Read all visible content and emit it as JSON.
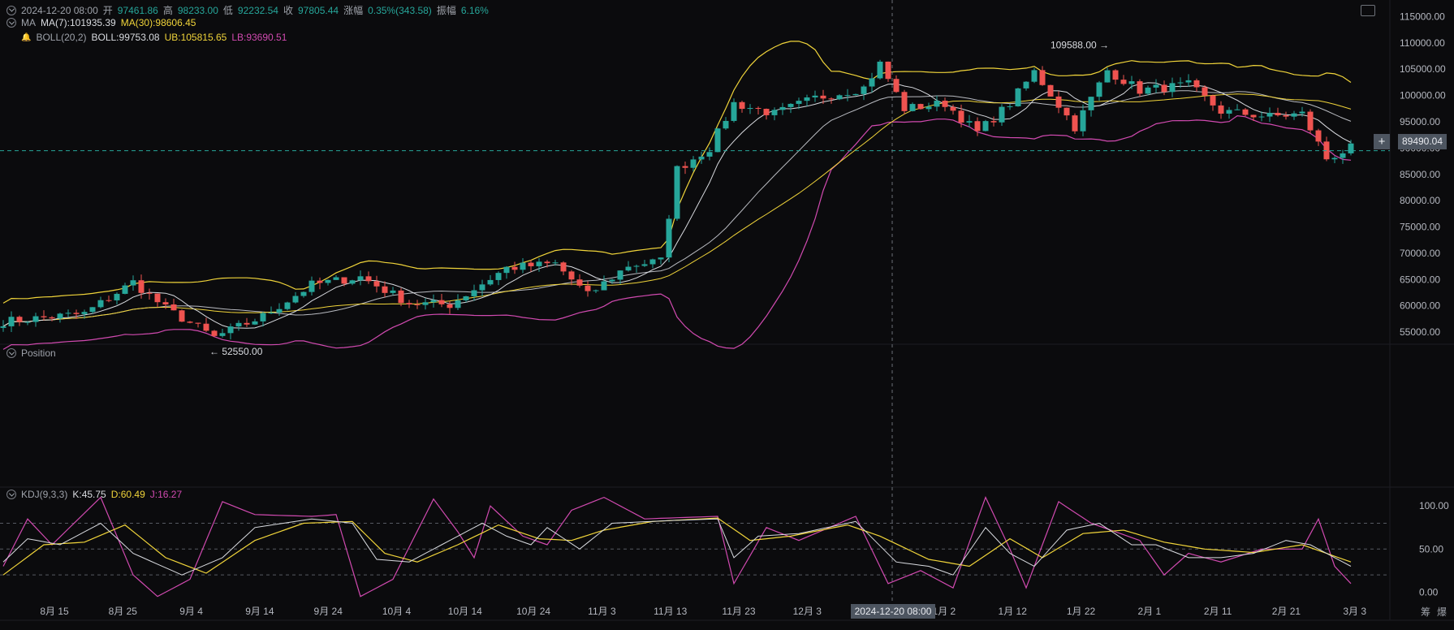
{
  "header": {
    "date": "2024-12-20 08:00",
    "open_label": "开",
    "open": "97461.86",
    "high_label": "高",
    "high": "98233.00",
    "low_label": "低",
    "low": "92232.54",
    "close_label": "收",
    "close": "97805.44",
    "change_label": "涨幅",
    "change": "0.35%(343.58)",
    "amp_label": "振幅",
    "amp": "6.16%"
  },
  "ma_legend": {
    "name": "MA",
    "ma7": "MA(7):101935.39",
    "ma30": "MA(30):98606.45"
  },
  "boll_legend": {
    "name": "BOLL(20,2)",
    "boll": "BOLL:99753.08",
    "ub": "UB:105815.65",
    "lb": "LB:93690.51"
  },
  "position_label": "Position",
  "kdj_legend": {
    "name": "KDJ(9,3,3)",
    "k": "K:45.75",
    "d": "D:60.49",
    "j": "J:16.27"
  },
  "crosshair": {
    "price": "89490.04",
    "time": "2024-12-20 08:00"
  },
  "bottom_icons": [
    "筹",
    "爆"
  ],
  "colors": {
    "up": "#26a69a",
    "down": "#ef5350",
    "ma7": "#d9dbe0",
    "yellow": "#f0d43a",
    "magenta": "#d14ab0",
    "bg": "#0b0b0d"
  },
  "chart_data": {
    "type": "candlestick",
    "price_axis": {
      "ticks": [
        "115000.00",
        "110000.00",
        "105000.00",
        "100000.00",
        "95000.00",
        "90000.00",
        "85000.00",
        "80000.00",
        "75000.00",
        "70000.00",
        "65000.00",
        "60000.00",
        "55000.00"
      ],
      "range": [
        53000,
        116000
      ]
    },
    "kdj_axis": {
      "ticks": [
        "100.00",
        "50.00",
        "0.00"
      ],
      "range": [
        -10,
        120
      ],
      "guides": [
        80,
        50,
        20
      ]
    },
    "x_axis": {
      "ticks": [
        "8月 15",
        "8月 25",
        "9月 4",
        "9月 14",
        "9月 24",
        "10月 4",
        "10月 14",
        "10月 24",
        "11月 3",
        "11月 13",
        "11月 23",
        "12月 3",
        "12月",
        "1月 2",
        "1月 12",
        "1月 22",
        "2月 1",
        "2月 11",
        "2月 21",
        "3月 3"
      ]
    },
    "annotations": {
      "max": "109588.00",
      "min": "52550.00",
      "max_value": 109588,
      "min_value": 52550,
      "max_index": 137,
      "min_index": 25
    },
    "n_candles": 167,
    "close_keypoints": [
      [
        0,
        57000
      ],
      [
        10,
        58500
      ],
      [
        16,
        64500
      ],
      [
        20,
        59500
      ],
      [
        26,
        54000
      ],
      [
        32,
        58000
      ],
      [
        38,
        64000
      ],
      [
        44,
        65500
      ],
      [
        50,
        60500
      ],
      [
        55,
        60200
      ],
      [
        62,
        67200
      ],
      [
        68,
        68000
      ],
      [
        72,
        62000
      ],
      [
        77,
        67700
      ],
      [
        81,
        68500
      ],
      [
        83,
        86000
      ],
      [
        87,
        90000
      ],
      [
        90,
        98500
      ],
      [
        95,
        96500
      ],
      [
        100,
        99500
      ],
      [
        106,
        101500
      ],
      [
        108,
        106000
      ],
      [
        111,
        97500
      ],
      [
        116,
        98500
      ],
      [
        120,
        93000
      ],
      [
        124,
        98500
      ],
      [
        127,
        104500
      ],
      [
        132,
        94000
      ],
      [
        136,
        104800
      ],
      [
        140,
        101000
      ],
      [
        146,
        102000
      ],
      [
        150,
        97000
      ],
      [
        156,
        96000
      ],
      [
        160,
        96500
      ],
      [
        163,
        88000
      ],
      [
        166,
        90000
      ]
    ],
    "kdj_k_keypoints": [
      [
        0,
        35
      ],
      [
        3,
        62
      ],
      [
        7,
        55
      ],
      [
        12,
        80
      ],
      [
        16,
        45
      ],
      [
        22,
        20
      ],
      [
        27,
        40
      ],
      [
        31,
        75
      ],
      [
        38,
        85
      ],
      [
        43,
        80
      ],
      [
        46,
        38
      ],
      [
        50,
        35
      ],
      [
        54,
        55
      ],
      [
        59,
        80
      ],
      [
        62,
        65
      ],
      [
        65,
        55
      ],
      [
        67,
        75
      ],
      [
        71,
        50
      ],
      [
        75,
        80
      ],
      [
        82,
        83
      ],
      [
        88,
        85
      ],
      [
        90,
        40
      ],
      [
        93,
        65
      ],
      [
        98,
        68
      ],
      [
        105,
        82
      ],
      [
        110,
        35
      ],
      [
        114,
        30
      ],
      [
        117,
        20
      ],
      [
        121,
        75
      ],
      [
        124,
        45
      ],
      [
        127,
        30
      ],
      [
        131,
        72
      ],
      [
        135,
        80
      ],
      [
        139,
        55
      ],
      [
        142,
        55
      ],
      [
        146,
        40
      ],
      [
        150,
        40
      ],
      [
        154,
        45
      ],
      [
        158,
        60
      ],
      [
        161,
        55
      ],
      [
        166,
        30
      ]
    ],
    "kdj_d_keypoints": [
      [
        0,
        20
      ],
      [
        5,
        55
      ],
      [
        10,
        58
      ],
      [
        15,
        78
      ],
      [
        20,
        40
      ],
      [
        25,
        22
      ],
      [
        31,
        60
      ],
      [
        37,
        80
      ],
      [
        43,
        82
      ],
      [
        47,
        45
      ],
      [
        51,
        35
      ],
      [
        56,
        55
      ],
      [
        61,
        78
      ],
      [
        66,
        62
      ],
      [
        70,
        60
      ],
      [
        74,
        72
      ],
      [
        80,
        82
      ],
      [
        88,
        86
      ],
      [
        92,
        60
      ],
      [
        97,
        65
      ],
      [
        104,
        78
      ],
      [
        108,
        65
      ],
      [
        114,
        38
      ],
      [
        119,
        30
      ],
      [
        124,
        62
      ],
      [
        128,
        40
      ],
      [
        133,
        68
      ],
      [
        138,
        72
      ],
      [
        143,
        58
      ],
      [
        148,
        50
      ],
      [
        154,
        46
      ],
      [
        160,
        55
      ],
      [
        166,
        35
      ]
    ],
    "kdj_j_keypoints": [
      [
        0,
        30
      ],
      [
        3,
        85
      ],
      [
        6,
        55
      ],
      [
        12,
        110
      ],
      [
        16,
        20
      ],
      [
        19,
        -5
      ],
      [
        23,
        15
      ],
      [
        27,
        105
      ],
      [
        31,
        90
      ],
      [
        38,
        88
      ],
      [
        41,
        90
      ],
      [
        44,
        -5
      ],
      [
        48,
        15
      ],
      [
        53,
        108
      ],
      [
        56,
        70
      ],
      [
        58,
        40
      ],
      [
        60,
        100
      ],
      [
        64,
        65
      ],
      [
        67,
        55
      ],
      [
        70,
        95
      ],
      [
        74,
        110
      ],
      [
        79,
        85
      ],
      [
        88,
        88
      ],
      [
        90,
        10
      ],
      [
        94,
        75
      ],
      [
        98,
        60
      ],
      [
        105,
        88
      ],
      [
        109,
        10
      ],
      [
        113,
        25
      ],
      [
        117,
        5
      ],
      [
        121,
        110
      ],
      [
        124,
        50
      ],
      [
        126,
        5
      ],
      [
        130,
        105
      ],
      [
        134,
        80
      ],
      [
        137,
        70
      ],
      [
        140,
        60
      ],
      [
        143,
        20
      ],
      [
        146,
        45
      ],
      [
        150,
        35
      ],
      [
        155,
        50
      ],
      [
        160,
        50
      ],
      [
        162,
        85
      ],
      [
        164,
        30
      ],
      [
        166,
        10
      ]
    ]
  }
}
